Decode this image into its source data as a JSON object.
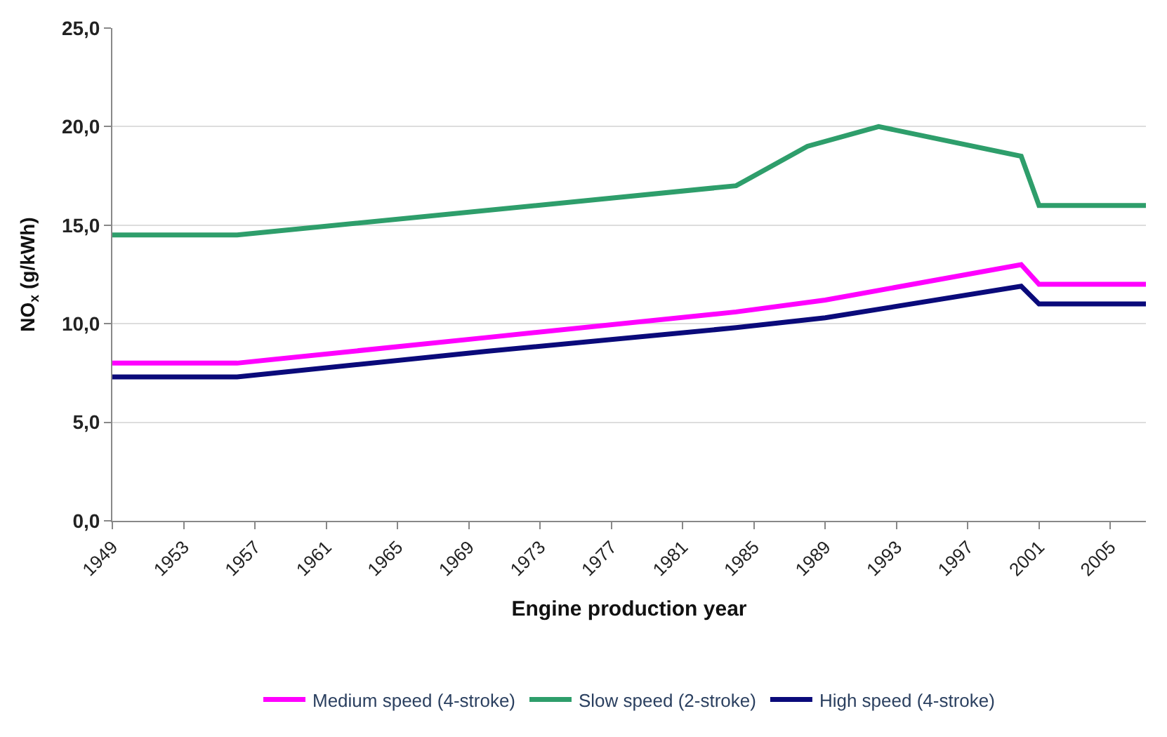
{
  "chart_data": {
    "type": "line",
    "xlabel": "Engine production year",
    "ylabel": "NO$_{x}$ (g/kWh)",
    "xlim": [
      1949,
      2007
    ],
    "xticks": [
      1949,
      1953,
      1957,
      1961,
      1965,
      1969,
      1973,
      1977,
      1981,
      1985,
      1989,
      1993,
      1997,
      2001,
      2005
    ],
    "ylim": [
      0,
      25
    ],
    "yticks": [
      {
        "value": 0,
        "label": "0,0"
      },
      {
        "value": 5,
        "label": "5,0"
      },
      {
        "value": 10,
        "label": "10,0"
      },
      {
        "value": 15,
        "label": "15,0"
      },
      {
        "value": 20,
        "label": "20,0"
      },
      {
        "value": 25,
        "label": "25,0"
      }
    ],
    "grid": "y",
    "legend": "bottom",
    "marker": "none",
    "line_style": "solid",
    "series": [
      {
        "name": "Medium speed (4-stroke)",
        "color": "#ff00ff",
        "x": [
          1949,
          1956,
          1970,
          1984,
          1989,
          2000,
          2001,
          2007
        ],
        "values": [
          8.0,
          8.0,
          9.3,
          10.6,
          11.2,
          13.0,
          12.0,
          12.0
        ]
      },
      {
        "name": "Slow speed (2-stroke)",
        "color": "#2e9e6b",
        "x": [
          1949,
          1956,
          1984,
          1988,
          1992,
          2000,
          2001,
          2007
        ],
        "values": [
          14.5,
          14.5,
          17.0,
          19.0,
          20.0,
          18.5,
          16.0,
          16.0
        ]
      },
      {
        "name": "High speed (4-stroke)",
        "color": "#0a0a7a",
        "x": [
          1949,
          1956,
          1970,
          1984,
          1989,
          2000,
          2001,
          2007
        ],
        "values": [
          7.3,
          7.3,
          8.6,
          9.8,
          10.3,
          11.9,
          11.0,
          11.0
        ]
      }
    ]
  }
}
